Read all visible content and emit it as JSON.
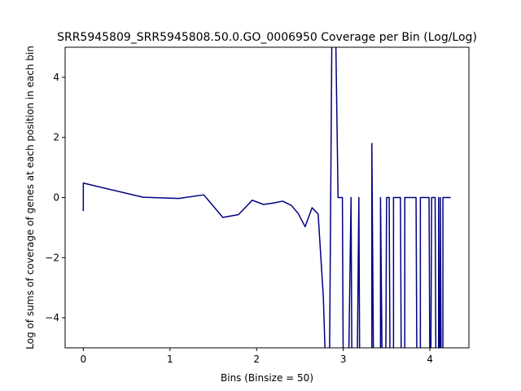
{
  "chart_data": {
    "type": "line",
    "title": "SRR5945809_SRR5945808.50.0.GO_0006950 Coverage per Bin (Log/Log)",
    "xlabel": "Bins (Binsize = 50)",
    "ylabel": "Log of sums of coverage of genes at each position in each bin",
    "xlim": [
      -0.21,
      4.45
    ],
    "ylim": [
      -5,
      5
    ],
    "xticks": [
      0,
      1,
      2,
      3,
      4
    ],
    "yticks": [
      -4,
      -2,
      0,
      2,
      4
    ],
    "grid": false,
    "series": [
      {
        "color": "#000080",
        "points": [
          [
            0.0,
            -0.45
          ],
          [
            0.0,
            0.48
          ],
          [
            0.69,
            0.01
          ],
          [
            1.1,
            -0.03
          ],
          [
            1.39,
            0.09
          ],
          [
            1.61,
            -0.66
          ],
          [
            1.79,
            -0.57
          ],
          [
            1.95,
            -0.09
          ],
          [
            2.08,
            -0.23
          ],
          [
            2.2,
            -0.18
          ],
          [
            2.3,
            -0.12
          ],
          [
            2.4,
            -0.26
          ],
          [
            2.48,
            -0.53
          ],
          [
            2.56,
            -0.97
          ],
          [
            2.64,
            -0.34
          ],
          [
            2.71,
            -0.55
          ],
          [
            2.77,
            -3.3
          ],
          [
            2.8,
            -6.0
          ],
          [
            2.84,
            -6.0
          ],
          [
            2.87,
            6.0
          ],
          [
            2.91,
            6.0
          ],
          [
            2.94,
            0.0
          ],
          [
            2.96,
            0.0
          ],
          [
            2.99,
            0.0
          ],
          [
            3.0,
            -6.0
          ],
          [
            3.06,
            -6.0
          ],
          [
            3.09,
            0.0
          ],
          [
            3.1,
            -6.0
          ],
          [
            3.16,
            -6.0
          ],
          [
            3.18,
            0.0
          ],
          [
            3.19,
            -6.0
          ],
          [
            3.33,
            -6.0
          ],
          [
            3.33,
            1.8
          ],
          [
            3.35,
            -6.0
          ],
          [
            3.43,
            -6.0
          ],
          [
            3.43,
            0.0
          ],
          [
            3.45,
            -6.0
          ],
          [
            3.49,
            -6.0
          ],
          [
            3.5,
            0.0
          ],
          [
            3.53,
            0.0
          ],
          [
            3.54,
            -6.0
          ],
          [
            3.58,
            -6.0
          ],
          [
            3.58,
            0.0
          ],
          [
            3.66,
            0.0
          ],
          [
            3.67,
            -6.0
          ],
          [
            3.71,
            -6.0
          ],
          [
            3.71,
            0.0
          ],
          [
            3.84,
            0.0
          ],
          [
            3.85,
            -6.0
          ],
          [
            3.89,
            -6.0
          ],
          [
            3.89,
            0.0
          ],
          [
            3.99,
            0.0
          ],
          [
            4.0,
            -6.0
          ],
          [
            4.01,
            -6.0
          ],
          [
            4.02,
            0.0
          ],
          [
            4.06,
            0.0
          ],
          [
            4.07,
            -6.0
          ],
          [
            4.1,
            -6.0
          ],
          [
            4.1,
            0.0
          ],
          [
            4.11,
            -6.0
          ],
          [
            4.12,
            -6.0
          ],
          [
            4.12,
            0.0
          ],
          [
            4.13,
            -6.0
          ],
          [
            4.15,
            -6.0
          ],
          [
            4.15,
            0.0
          ],
          [
            4.24,
            0.0
          ]
        ]
      }
    ]
  }
}
